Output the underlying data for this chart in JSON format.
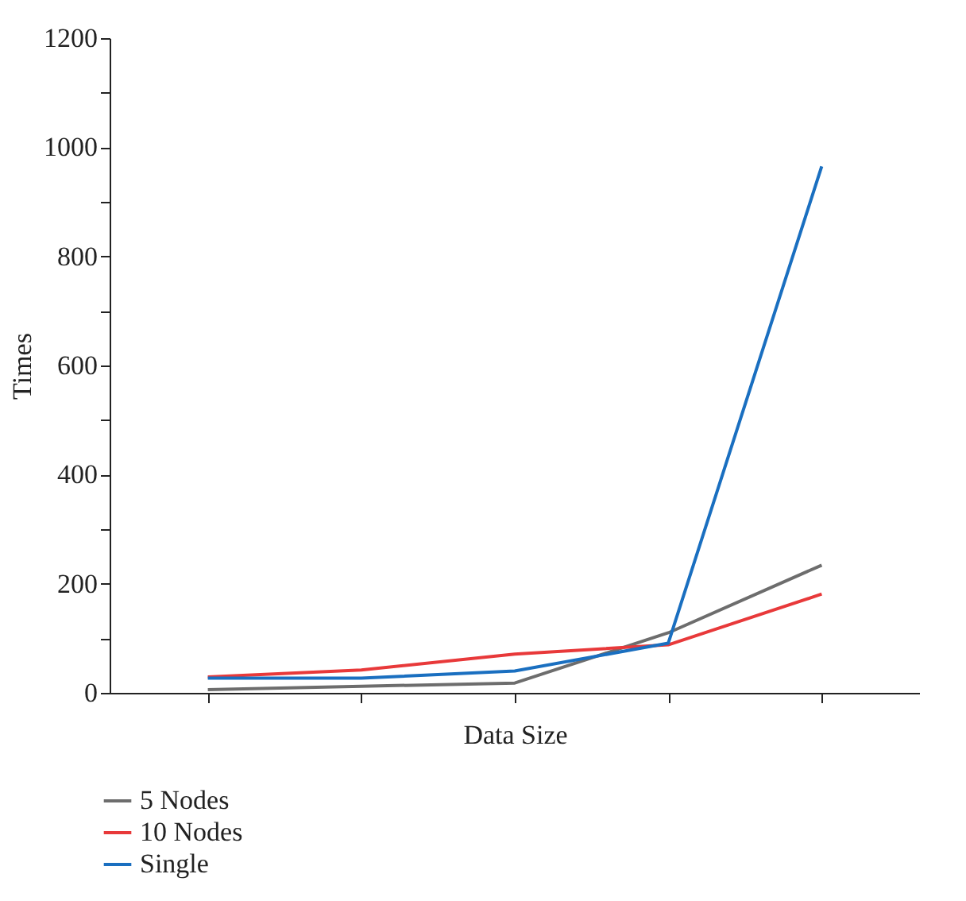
{
  "chart_data": {
    "type": "line",
    "xlabel": "Data Size",
    "ylabel": "Times",
    "categories": [
      null,
      null,
      null,
      null,
      null
    ],
    "series": [
      {
        "name": "5 Nodes",
        "color": "#6d6d6d",
        "values": [
          6,
          12,
          18,
          110,
          234
        ]
      },
      {
        "name": "10 Nodes",
        "color": "#e8393a",
        "values": [
          29,
          42,
          71,
          88,
          181
        ]
      },
      {
        "name": "Single",
        "color": "#1a6fc0",
        "values": [
          27,
          27,
          40,
          91,
          965
        ]
      }
    ],
    "ylim": [
      0,
      1200
    ],
    "yticks": [
      0,
      {
        "value": 100,
        "label": null
      },
      200,
      {
        "value": 300,
        "label": null
      },
      400,
      {
        "value": 500,
        "label": null
      },
      600,
      {
        "value": 700,
        "label": null
      },
      800,
      {
        "value": 900,
        "label": null
      },
      1000,
      {
        "value": 1100,
        "label": null
      },
      1200
    ],
    "tick_labels": "y",
    "grid": false,
    "legend": "bottom left",
    "marker": "none",
    "line_style": "solid"
  }
}
